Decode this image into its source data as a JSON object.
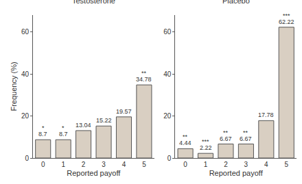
{
  "chart_data": [
    {
      "type": "bar",
      "title": "Testosterone",
      "categories": [
        "0",
        "1",
        "2",
        "3",
        "4",
        "5"
      ],
      "values": [
        8.7,
        8.7,
        13.04,
        15.22,
        19.57,
        34.78
      ],
      "annotations": [
        "*",
        "*",
        null,
        null,
        null,
        "**"
      ],
      "color": "#d9cfc2",
      "data_labels": true,
      "x_label": "Reported payoff",
      "y_label": "Frequency (%)",
      "ylim": [
        0,
        68
      ],
      "yticks": [
        0,
        20,
        40,
        60
      ],
      "grid": false
    },
    {
      "type": "bar",
      "title": "Placebo",
      "categories": [
        "0",
        "1",
        "2",
        "3",
        "4",
        "5"
      ],
      "values": [
        4.44,
        2.22,
        6.67,
        6.67,
        17.78,
        62.22
      ],
      "annotations": [
        "**",
        "***",
        "**",
        "**",
        null,
        "***"
      ],
      "color": "#d9cfc2",
      "data_labels": true,
      "x_label": "Reported payoff",
      "ylim": [
        0,
        68
      ],
      "yticks": [
        0,
        20,
        40,
        60
      ],
      "grid": false
    }
  ]
}
